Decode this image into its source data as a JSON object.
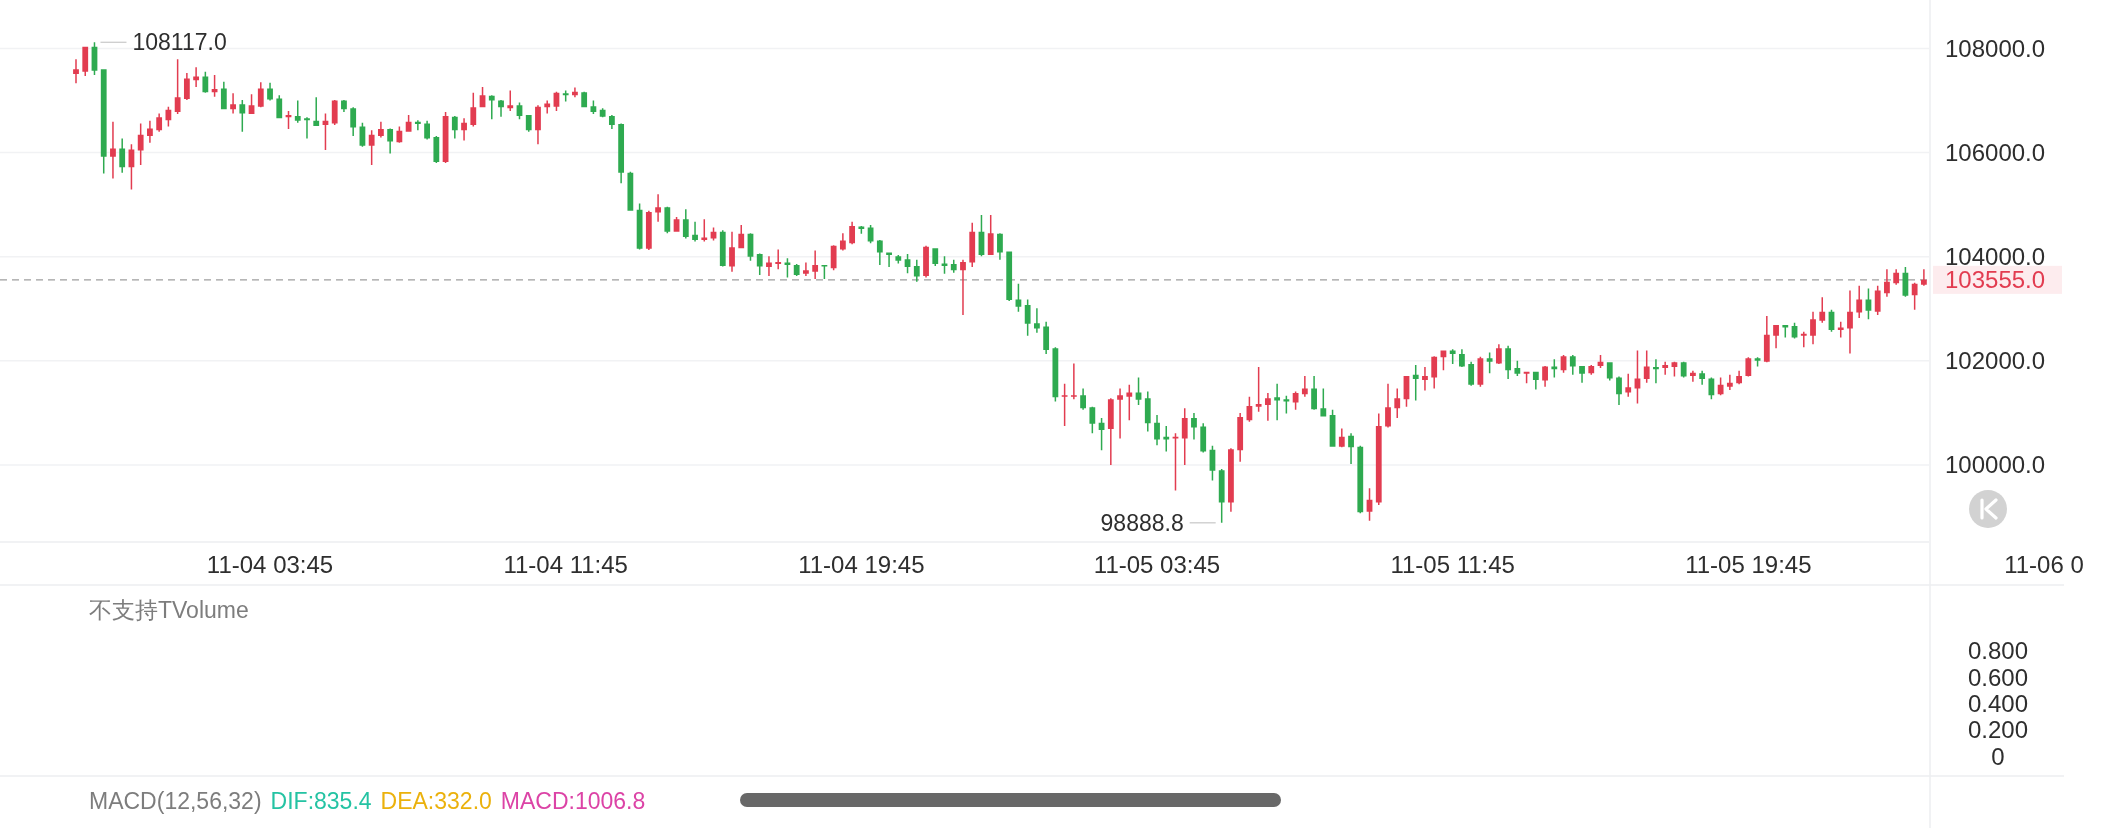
{
  "chart_data": [
    {
      "type": "candlestick",
      "categories": [
        null,
        null,
        null,
        null,
        null,
        null,
        null,
        null,
        null,
        null,
        null,
        null,
        null,
        null,
        null,
        null,
        null,
        null,
        null,
        null,
        null,
        "11-04 03:45",
        null,
        null,
        null,
        null,
        null,
        null,
        null,
        null,
        null,
        null,
        null,
        null,
        null,
        null,
        null,
        null,
        null,
        null,
        null,
        null,
        null,
        null,
        null,
        null,
        null,
        null,
        null,
        null,
        null,
        null,
        null,
        "11-04 11:45",
        null,
        null,
        null,
        null,
        null,
        null,
        null,
        null,
        null,
        null,
        null,
        null,
        null,
        null,
        null,
        null,
        null,
        null,
        null,
        null,
        null,
        null,
        null,
        null,
        null,
        null,
        null,
        null,
        null,
        null,
        null,
        "11-04 19:45",
        null,
        null,
        null,
        null,
        null,
        null,
        null,
        null,
        null,
        null,
        null,
        null,
        null,
        null,
        null,
        null,
        null,
        null,
        null,
        null,
        null,
        null,
        null,
        null,
        null,
        null,
        null,
        null,
        null,
        null,
        null,
        "11-05 03:45",
        null,
        null,
        null,
        null,
        null,
        null,
        null,
        null,
        null,
        null,
        null,
        null,
        null,
        null,
        null,
        null,
        null,
        null,
        null,
        null,
        null,
        null,
        null,
        null,
        null,
        null,
        null,
        null,
        null,
        null,
        null,
        "11-05 11:45",
        null,
        null,
        null,
        null,
        null,
        null,
        null,
        null,
        null,
        null,
        null,
        null,
        null,
        null,
        null,
        null,
        null,
        null,
        null,
        null,
        null,
        null,
        null,
        null,
        null,
        null,
        null,
        null,
        null,
        null,
        null,
        "11-05 19:45",
        null,
        null,
        null,
        null,
        null,
        null,
        null,
        null,
        null,
        null,
        null,
        null,
        null,
        null,
        null,
        null,
        null,
        null,
        null,
        null,
        null,
        null,
        null,
        null,
        null,
        null,
        null,
        null,
        null,
        null,
        null,
        "11-06 0"
      ],
      "ohlc": [
        [
          107510,
          107790,
          107330,
          107600
        ],
        [
          107550,
          108030,
          107470,
          108030
        ],
        [
          108030,
          108117,
          107490,
          107570
        ],
        [
          107600,
          107600,
          105600,
          105920
        ],
        [
          105920,
          106590,
          105500,
          106080
        ],
        [
          106080,
          106270,
          105610,
          105720
        ],
        [
          105720,
          106160,
          105290,
          106060
        ],
        [
          106040,
          106560,
          105760,
          106340
        ],
        [
          106320,
          106610,
          106190,
          106460
        ],
        [
          106430,
          106750,
          106400,
          106680
        ],
        [
          106620,
          106880,
          106500,
          106820
        ],
        [
          106780,
          107790,
          106740,
          107060
        ],
        [
          107030,
          107530,
          107010,
          107420
        ],
        [
          107390,
          107640,
          107260,
          107460
        ],
        [
          107460,
          107550,
          107150,
          107160
        ],
        [
          107160,
          107490,
          107070,
          107220
        ],
        [
          107230,
          107360,
          106830,
          106830
        ],
        [
          106830,
          107140,
          106750,
          106930
        ],
        [
          106930,
          107010,
          106400,
          106750
        ],
        [
          106740,
          107120,
          106740,
          106910
        ],
        [
          106880,
          107350,
          106870,
          107230
        ],
        [
          107230,
          107340,
          107000,
          107020
        ],
        [
          107040,
          107100,
          106660,
          106660
        ],
        [
          106680,
          106800,
          106450,
          106720
        ],
        [
          106700,
          107000,
          106570,
          106610
        ],
        [
          106660,
          106680,
          106270,
          106620
        ],
        [
          106610,
          107060,
          106510,
          106510
        ],
        [
          106530,
          106750,
          106050,
          106610
        ],
        [
          106560,
          107010,
          106530,
          107000
        ],
        [
          107000,
          107010,
          106780,
          106830
        ],
        [
          106850,
          106870,
          106320,
          106480
        ],
        [
          106500,
          106570,
          106110,
          106130
        ],
        [
          106130,
          106430,
          105760,
          106340
        ],
        [
          106320,
          106590,
          106290,
          106450
        ],
        [
          106450,
          106460,
          105980,
          106210
        ],
        [
          106200,
          106500,
          106190,
          106420
        ],
        [
          106400,
          106720,
          106400,
          106590
        ],
        [
          106590,
          106620,
          106430,
          106550
        ],
        [
          106560,
          106610,
          106250,
          106270
        ],
        [
          106300,
          106320,
          105800,
          105820
        ],
        [
          105820,
          106780,
          105800,
          106700
        ],
        [
          106690,
          106700,
          106270,
          106430
        ],
        [
          106430,
          106660,
          106230,
          106570
        ],
        [
          106530,
          107150,
          106500,
          106870
        ],
        [
          106870,
          107260,
          106870,
          107100
        ],
        [
          107090,
          107100,
          106640,
          107000
        ],
        [
          107000,
          107010,
          106690,
          106870
        ],
        [
          106850,
          107190,
          106800,
          106910
        ],
        [
          106910,
          106960,
          106640,
          106700
        ],
        [
          106720,
          106720,
          106400,
          106430
        ],
        [
          106430,
          106910,
          106160,
          106880
        ],
        [
          106870,
          107000,
          106750,
          106940
        ],
        [
          106880,
          107170,
          106800,
          107150
        ],
        [
          107140,
          107190,
          106980,
          107100
        ],
        [
          107100,
          107250,
          107060,
          107170
        ],
        [
          107160,
          107170,
          106870,
          106870
        ],
        [
          106890,
          107000,
          106740,
          106780
        ],
        [
          106820,
          106850,
          106680,
          106690
        ],
        [
          106700,
          106720,
          106450,
          106530
        ],
        [
          106550,
          106560,
          105410,
          105610
        ],
        [
          105610,
          105630,
          104880,
          104880
        ],
        [
          104900,
          105020,
          104140,
          104150
        ],
        [
          104150,
          104880,
          104130,
          104860
        ],
        [
          104850,
          105200,
          104670,
          104950
        ],
        [
          104950,
          104960,
          104450,
          104480
        ],
        [
          104480,
          104760,
          104480,
          104720
        ],
        [
          104720,
          104910,
          104350,
          104380
        ],
        [
          104420,
          104670,
          104290,
          104320
        ],
        [
          104320,
          104720,
          104290,
          104370
        ],
        [
          104350,
          104560,
          104310,
          104480
        ],
        [
          104480,
          104510,
          103810,
          103820
        ],
        [
          103810,
          104480,
          103710,
          104180
        ],
        [
          104160,
          104610,
          104160,
          104440
        ],
        [
          104440,
          104450,
          103920,
          104000
        ],
        [
          104050,
          104060,
          103650,
          103810
        ],
        [
          103800,
          104010,
          103630,
          103890
        ],
        [
          103860,
          104140,
          103760,
          103900
        ],
        [
          103890,
          103970,
          103600,
          103840
        ],
        [
          103840,
          103860,
          103630,
          103650
        ],
        [
          103670,
          103890,
          103630,
          103740
        ],
        [
          103710,
          104120,
          103570,
          103840
        ],
        [
          103840,
          103840,
          103570,
          103810
        ],
        [
          103780,
          104220,
          103740,
          104210
        ],
        [
          104140,
          104450,
          104120,
          104310
        ],
        [
          104260,
          104670,
          104240,
          104590
        ],
        [
          104580,
          104590,
          104440,
          104530
        ],
        [
          104560,
          104610,
          104260,
          104290
        ],
        [
          104310,
          104320,
          103840,
          104080
        ],
        [
          104080,
          104080,
          103800,
          104030
        ],
        [
          104010,
          104030,
          103870,
          103920
        ],
        [
          103950,
          104050,
          103680,
          103800
        ],
        [
          103820,
          103940,
          103520,
          103620
        ],
        [
          103630,
          104210,
          103600,
          104190
        ],
        [
          104160,
          104160,
          103820,
          103860
        ],
        [
          103870,
          104010,
          103670,
          103820
        ],
        [
          103860,
          103940,
          103690,
          103740
        ],
        [
          103740,
          103940,
          102880,
          103900
        ],
        [
          103890,
          104650,
          103800,
          104480
        ],
        [
          104480,
          104800,
          104010,
          104030
        ],
        [
          104030,
          104800,
          104030,
          104450
        ],
        [
          104440,
          104450,
          103940,
          104080
        ],
        [
          104100,
          104100,
          103150,
          103170
        ],
        [
          103180,
          103480,
          102940,
          103040
        ],
        [
          103070,
          103180,
          102480,
          102710
        ],
        [
          102720,
          103010,
          102540,
          102620
        ],
        [
          102660,
          102750,
          102130,
          102210
        ],
        [
          102240,
          102260,
          101220,
          101300
        ],
        [
          101310,
          101560,
          100750,
          101340
        ],
        [
          101310,
          101950,
          101260,
          101340
        ],
        [
          101340,
          101470,
          101060,
          101090
        ],
        [
          101110,
          101120,
          100610,
          100790
        ],
        [
          100810,
          100900,
          100280,
          100670
        ],
        [
          100690,
          101280,
          100000,
          101260
        ],
        [
          101250,
          101470,
          100510,
          101340
        ],
        [
          101310,
          101540,
          100860,
          101390
        ],
        [
          101390,
          101680,
          101150,
          101250
        ],
        [
          101280,
          101410,
          100640,
          100800
        ],
        [
          100810,
          100960,
          100380,
          100490
        ],
        [
          100540,
          100750,
          100260,
          100490
        ],
        [
          100510,
          100610,
          99510,
          100540
        ],
        [
          100510,
          101090,
          100000,
          100900
        ],
        [
          100900,
          101000,
          100490,
          100720
        ],
        [
          100740,
          100800,
          100240,
          100260
        ],
        [
          100290,
          100370,
          99700,
          99890
        ],
        [
          99900,
          99920,
          98888.8,
          99280
        ],
        [
          99280,
          100320,
          99100,
          100300
        ],
        [
          100280,
          101000,
          100060,
          100920
        ],
        [
          100860,
          101310,
          100830,
          101130
        ],
        [
          101120,
          101880,
          101020,
          101170
        ],
        [
          101150,
          101380,
          100850,
          101280
        ],
        [
          101300,
          101560,
          100860,
          101240
        ],
        [
          101260,
          101330,
          100990,
          101220
        ],
        [
          101200,
          101410,
          101060,
          101380
        ],
        [
          101360,
          101710,
          101310,
          101470
        ],
        [
          101470,
          101710,
          101060,
          101070
        ],
        [
          101090,
          101470,
          100930,
          100930
        ],
        [
          100960,
          101060,
          100350,
          100350
        ],
        [
          100350,
          100700,
          100340,
          100540
        ],
        [
          100560,
          100610,
          100020,
          100340
        ],
        [
          100350,
          100370,
          99070,
          99090
        ],
        [
          99100,
          99550,
          98930,
          99330
        ],
        [
          99280,
          100990,
          99230,
          100750
        ],
        [
          100740,
          101560,
          100720,
          101110
        ],
        [
          101090,
          101470,
          100900,
          101280
        ],
        [
          101260,
          101710,
          101120,
          101710
        ],
        [
          101730,
          101920,
          101240,
          101650
        ],
        [
          101630,
          101880,
          101430,
          101710
        ],
        [
          101680,
          102090,
          101470,
          102080
        ],
        [
          102070,
          102200,
          101820,
          102200
        ],
        [
          102200,
          102220,
          101940,
          102130
        ],
        [
          102130,
          102220,
          101880,
          101890
        ],
        [
          101940,
          101980,
          101520,
          101540
        ],
        [
          101540,
          102080,
          101500,
          102050
        ],
        [
          102050,
          102160,
          101760,
          101980
        ],
        [
          101950,
          102320,
          101940,
          102240
        ],
        [
          102240,
          102290,
          101650,
          101820
        ],
        [
          101860,
          102000,
          101710,
          101750
        ],
        [
          101750,
          101790,
          101570,
          101790
        ],
        [
          101790,
          101790,
          101450,
          101630
        ],
        [
          101620,
          101900,
          101500,
          101890
        ],
        [
          101890,
          102030,
          101680,
          101840
        ],
        [
          101820,
          102110,
          101770,
          102090
        ],
        [
          102090,
          102110,
          101730,
          101890
        ],
        [
          101900,
          101900,
          101580,
          101750
        ],
        [
          101760,
          101920,
          101730,
          101900
        ],
        [
          101900,
          102110,
          101860,
          101980
        ],
        [
          101970,
          101970,
          101620,
          101660
        ],
        [
          101680,
          101700,
          101150,
          101360
        ],
        [
          101390,
          101750,
          101310,
          101490
        ],
        [
          101470,
          102200,
          101180,
          101660
        ],
        [
          101650,
          102200,
          101580,
          101890
        ],
        [
          101880,
          102030,
          101570,
          101840
        ],
        [
          101860,
          101980,
          101730,
          101920
        ],
        [
          101880,
          101980,
          101700,
          101970
        ],
        [
          101970,
          101980,
          101680,
          101700
        ],
        [
          101710,
          101810,
          101600,
          101770
        ],
        [
          101760,
          101810,
          101540,
          101650
        ],
        [
          101660,
          101680,
          101260,
          101340
        ],
        [
          101360,
          101680,
          101340,
          101540
        ],
        [
          101500,
          101730,
          101440,
          101580
        ],
        [
          101570,
          101810,
          101550,
          101710
        ],
        [
          101710,
          102070,
          101700,
          102050
        ],
        [
          102050,
          102070,
          101890,
          102000
        ],
        [
          101980,
          102860,
          101970,
          102500
        ],
        [
          102480,
          102690,
          102240,
          102690
        ],
        [
          102690,
          102690,
          102450,
          102640
        ],
        [
          102670,
          102730,
          102430,
          102450
        ],
        [
          102480,
          102560,
          102260,
          102520
        ],
        [
          102480,
          102940,
          102320,
          102800
        ],
        [
          102770,
          103220,
          102730,
          102940
        ],
        [
          102940,
          102980,
          102560,
          102590
        ],
        [
          102590,
          102750,
          102450,
          102640
        ],
        [
          102620,
          103350,
          102140,
          102940
        ],
        [
          102930,
          103440,
          102820,
          103180
        ],
        [
          103180,
          103390,
          102800,
          102960
        ],
        [
          102940,
          103440,
          102880,
          103350
        ],
        [
          103300,
          103760,
          103230,
          103520
        ],
        [
          103490,
          103760,
          103460,
          103690
        ],
        [
          103690,
          103800,
          103230,
          103250
        ],
        [
          103260,
          103500,
          102980,
          103480
        ],
        [
          103460,
          103760,
          103440,
          103555
        ],
        null,
        null,
        null,
        null,
        null,
        null,
        null,
        null,
        null,
        null,
        null,
        null,
        null
      ],
      "colors": [
        "#e23c50",
        "#e23c50",
        "#2eaa50",
        "#2eaa50",
        "#e23c50",
        "#2eaa50",
        "#e23c50",
        "#e23c50",
        "#e23c50",
        "#e23c50",
        "#e23c50",
        "#e23c50",
        "#e23c50",
        "#e23c50",
        "#2eaa50",
        "#e23c50",
        "#2eaa50",
        "#e23c50",
        "#2eaa50",
        "#e23c50",
        "#e23c50",
        "#2eaa50",
        "#2eaa50",
        "#e23c50",
        "#2eaa50",
        "#2eaa50",
        "#2eaa50",
        "#e23c50",
        "#e23c50",
        "#2eaa50",
        "#2eaa50",
        "#2eaa50",
        "#e23c50",
        "#e23c50",
        "#2eaa50",
        "#e23c50",
        "#e23c50",
        "#2eaa50",
        "#2eaa50",
        "#2eaa50",
        "#e23c50",
        "#2eaa50",
        "#e23c50",
        "#e23c50",
        "#e23c50",
        "#2eaa50",
        "#2eaa50",
        "#e23c50",
        "#2eaa50",
        "#2eaa50",
        "#e23c50",
        "#e23c50",
        "#e23c50",
        "#2eaa50",
        "#e23c50",
        "#2eaa50",
        "#2eaa50",
        "#2eaa50",
        "#2eaa50",
        "#2eaa50",
        "#2eaa50",
        "#2eaa50",
        "#e23c50",
        "#e23c50",
        "#2eaa50",
        "#e23c50",
        "#2eaa50",
        "#2eaa50",
        "#e23c50",
        "#e23c50",
        "#2eaa50",
        "#e23c50",
        "#e23c50",
        "#2eaa50",
        "#2eaa50",
        "#e23c50",
        "#e23c50",
        "#2eaa50",
        "#2eaa50",
        "#e23c50",
        "#e23c50",
        "#2eaa50",
        "#e23c50",
        "#e23c50",
        "#e23c50",
        "#2eaa50",
        "#2eaa50",
        "#2eaa50",
        "#2eaa50",
        "#2eaa50",
        "#2eaa50",
        "#2eaa50",
        "#e23c50",
        "#2eaa50",
        "#2eaa50",
        "#2eaa50",
        "#e23c50",
        "#e23c50",
        "#2eaa50",
        "#e23c50",
        "#2eaa50",
        "#2eaa50",
        "#2eaa50",
        "#2eaa50",
        "#2eaa50",
        "#2eaa50",
        "#2eaa50",
        "#e23c50",
        "#e23c50",
        "#2eaa50",
        "#2eaa50",
        "#2eaa50",
        "#e23c50",
        "#e23c50",
        "#e23c50",
        "#2eaa50",
        "#2eaa50",
        "#2eaa50",
        "#2eaa50",
        "#e23c50",
        "#e23c50",
        "#2eaa50",
        "#2eaa50",
        "#2eaa50",
        "#2eaa50",
        "#e23c50",
        "#e23c50",
        "#e23c50",
        "#e23c50",
        "#e23c50",
        "#2eaa50",
        "#2eaa50",
        "#e23c50",
        "#e23c50",
        "#2eaa50",
        "#2eaa50",
        "#2eaa50",
        "#e23c50",
        "#2eaa50",
        "#2eaa50",
        "#e23c50",
        "#e23c50",
        "#e23c50",
        "#e23c50",
        "#e23c50",
        "#2eaa50",
        "#e23c50",
        "#e23c50",
        "#e23c50",
        "#2eaa50",
        "#2eaa50",
        "#2eaa50",
        "#e23c50",
        "#2eaa50",
        "#e23c50",
        "#2eaa50",
        "#2eaa50",
        "#e23c50",
        "#2eaa50",
        "#e23c50",
        "#2eaa50",
        "#e23c50",
        "#2eaa50",
        "#2eaa50",
        "#e23c50",
        "#e23c50",
        "#2eaa50",
        "#2eaa50",
        "#e23c50",
        "#e23c50",
        "#e23c50",
        "#2eaa50",
        "#e23c50",
        "#e23c50",
        "#2eaa50",
        "#e23c50",
        "#2eaa50",
        "#2eaa50",
        "#e23c50",
        "#e23c50",
        "#e23c50",
        "#e23c50",
        "#2eaa50",
        "#e23c50",
        "#e23c50",
        "#2eaa50",
        "#2eaa50",
        "#e23c50",
        "#e23c50",
        "#e23c50",
        "#2eaa50",
        "#e23c50",
        "#e23c50",
        "#e23c50",
        "#2eaa50",
        "#e23c50",
        "#e23c50",
        "#e23c50",
        "#2eaa50",
        "#e23c50",
        "#e23c50",
        null,
        null,
        null,
        null,
        null,
        null,
        null,
        null,
        null,
        null,
        null,
        null,
        null
      ],
      "ylim": [
        98520,
        108930
      ],
      "yticks": [
        {
          "value": 100000,
          "label": "100000.0"
        },
        {
          "value": 102000,
          "label": "102000.0"
        },
        {
          "value": 104000,
          "label": "104000.0"
        },
        {
          "value": 106000,
          "label": "106000.0"
        },
        {
          "value": 108000,
          "label": "108000.0"
        }
      ],
      "grid": "y",
      "annotations": [
        "108117.0",
        "98888.8"
      ],
      "ref_lines": [
        {
          "axis": "y",
          "value": 103555,
          "label": "103555.0",
          "color": "#9e9e9e",
          "line_style": "dashed"
        }
      ]
    },
    {
      "type": "bar",
      "title": "不支持TVolume",
      "categories": [
        null,
        null,
        null,
        null,
        null,
        null,
        null,
        null,
        null,
        null,
        null,
        null,
        null,
        null,
        null,
        null,
        null,
        null,
        null,
        null,
        null,
        null,
        null,
        null,
        null,
        null,
        null,
        null,
        null,
        null,
        null,
        null,
        null,
        null,
        null,
        null,
        null,
        null,
        null,
        null,
        null,
        null,
        null,
        null,
        null,
        null,
        null,
        null,
        null,
        null,
        null,
        null,
        null,
        null,
        null,
        null,
        null,
        null,
        null,
        null,
        null,
        null,
        null,
        null,
        null,
        null,
        null,
        null,
        null,
        null,
        null,
        null,
        null,
        null,
        null,
        null,
        null,
        null,
        null,
        null,
        null,
        null,
        null,
        null,
        null,
        null,
        null,
        null,
        null,
        null,
        null,
        null,
        null,
        null,
        null,
        null,
        null,
        null,
        null,
        null,
        null,
        null,
        null,
        null,
        null,
        null,
        null,
        null,
        null,
        null,
        null,
        null,
        null,
        null,
        null,
        null,
        null,
        null,
        null,
        null,
        null,
        null,
        null,
        null,
        null,
        null,
        null,
        null,
        null,
        null,
        null,
        null,
        null,
        null,
        null,
        null,
        null,
        null,
        null,
        null,
        null,
        null,
        null,
        null,
        null,
        null,
        null,
        null,
        null,
        null,
        null,
        null,
        null,
        null,
        null,
        null,
        null,
        null,
        null,
        null,
        null,
        null,
        null,
        null,
        null,
        null,
        null,
        null,
        null,
        null,
        null,
        null,
        null,
        null,
        null,
        null,
        null,
        null,
        null,
        null,
        null,
        null,
        null,
        null,
        null,
        null,
        null,
        null,
        null,
        null,
        null,
        null,
        null,
        null,
        null,
        null,
        null,
        null,
        null,
        null,
        null,
        null,
        null,
        null,
        null,
        null,
        null,
        null,
        null,
        null,
        null,
        null,
        null,
        null
      ],
      "values": [
        null,
        null,
        null,
        null,
        null,
        null,
        null,
        null,
        null,
        null,
        null,
        null,
        null,
        null,
        null,
        null,
        null,
        null,
        null,
        null,
        null,
        null,
        null,
        null,
        null,
        null,
        null,
        null,
        null,
        null,
        null,
        null,
        null,
        null,
        null,
        null,
        null,
        null,
        null,
        null,
        null,
        null,
        null,
        null,
        null,
        null,
        null,
        null,
        null,
        null,
        null,
        null,
        null,
        null,
        null,
        null,
        null,
        null,
        null,
        null,
        null,
        null,
        null,
        null,
        null,
        null,
        null,
        null,
        null,
        null,
        null,
        null,
        null,
        null,
        null,
        null,
        null,
        null,
        null,
        null,
        null,
        null,
        null,
        null,
        null,
        null,
        null,
        null,
        null,
        null,
        null,
        null,
        null,
        null,
        null,
        null,
        null,
        null,
        null,
        null,
        null,
        null,
        null,
        null,
        null,
        null,
        null,
        null,
        null,
        null,
        null,
        null,
        null,
        null,
        null,
        null,
        null,
        null,
        null,
        null,
        null,
        null,
        null,
        null,
        null,
        null,
        null,
        null,
        null,
        null,
        null,
        null,
        null,
        null,
        null,
        null,
        null,
        null,
        null,
        null,
        null,
        null,
        null,
        null,
        null,
        null,
        null,
        null,
        null,
        null,
        null,
        null,
        null,
        null,
        null,
        null,
        null,
        null,
        null,
        null,
        null,
        null,
        null,
        null,
        null,
        null,
        null,
        null,
        null,
        null,
        null,
        null,
        null,
        null,
        null,
        null,
        null,
        null,
        null,
        null,
        null,
        null,
        null,
        null,
        null,
        null,
        null,
        null,
        null,
        null,
        null,
        null,
        null,
        null,
        null,
        null,
        null,
        null,
        null,
        null,
        null,
        null,
        null,
        null,
        null,
        null,
        null,
        null,
        null,
        null,
        null,
        null,
        null,
        null
      ],
      "ylim": [
        -0.15,
        1.3
      ],
      "yticks": [
        0,
        {
          "value": 0.2,
          "label": "0.200"
        },
        {
          "value": 0.4,
          "label": "0.400"
        },
        {
          "value": 0.6,
          "label": "0.600"
        },
        {
          "value": 0.8,
          "label": "0.800"
        }
      ],
      "tick_labels": "y"
    },
    {
      "type": "other",
      "title": "MACD(12,56,32)",
      "series": [
        {
          "name": "DIF:835.4",
          "color": "#24c3a3"
        },
        {
          "name": "DEA:332.0",
          "color": "#ebb10c"
        },
        {
          "name": "MACD:1006.8",
          "color": "#dc43a6"
        }
      ]
    }
  ]
}
